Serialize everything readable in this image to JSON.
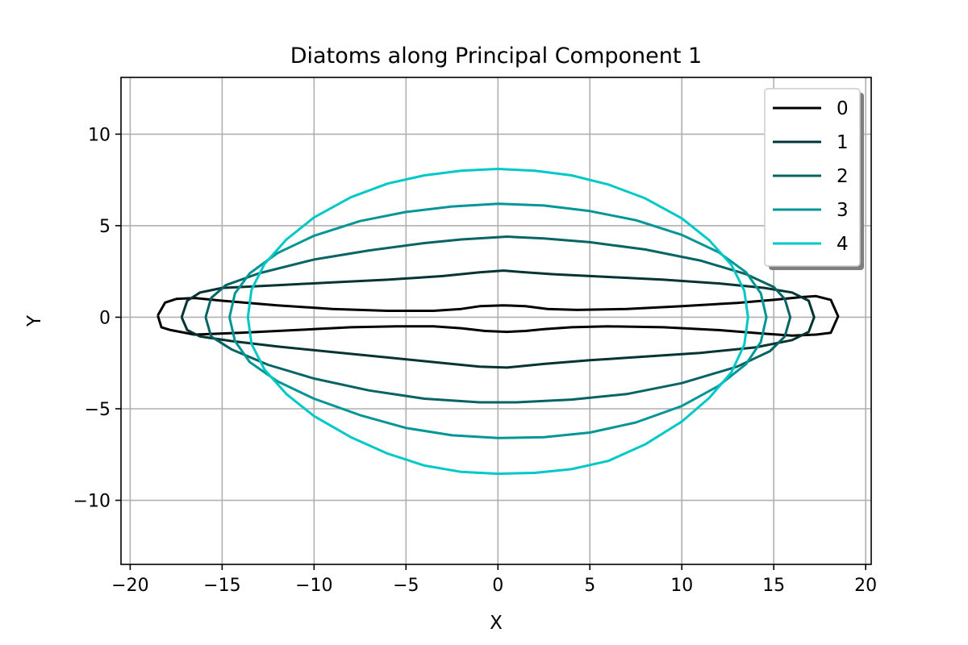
{
  "chart_data": {
    "type": "line",
    "title": "Diatoms along Principal Component 1",
    "xlabel": "X",
    "ylabel": "Y",
    "xlim": [
      -20.5,
      20.3
    ],
    "ylim": [
      -13.5,
      13.1
    ],
    "xticks": [
      -20,
      -15,
      -10,
      -5,
      0,
      5,
      10,
      15,
      20
    ],
    "yticks": [
      -10,
      -5,
      0,
      5,
      10
    ],
    "xtick_labels": [
      "−20",
      "−15",
      "−10",
      "−5",
      "0",
      "5",
      "10",
      "15",
      "20"
    ],
    "ytick_labels": [
      "−10",
      "−5",
      "0",
      "5",
      "10"
    ],
    "grid": true,
    "legend": "top-right",
    "series": [
      {
        "name": "0",
        "color": "#000000",
        "points": [
          [
            -18.5,
            0.1
          ],
          [
            -18.1,
            0.8
          ],
          [
            -17.5,
            1.0
          ],
          [
            -16.5,
            1.05
          ],
          [
            -15,
            0.9
          ],
          [
            -12,
            0.65
          ],
          [
            -9,
            0.45
          ],
          [
            -6,
            0.35
          ],
          [
            -3.5,
            0.35
          ],
          [
            -2,
            0.45
          ],
          [
            -1,
            0.6
          ],
          [
            0.3,
            0.65
          ],
          [
            1.5,
            0.6
          ],
          [
            2.7,
            0.45
          ],
          [
            4.3,
            0.4
          ],
          [
            7,
            0.45
          ],
          [
            10,
            0.6
          ],
          [
            13,
            0.78
          ],
          [
            15,
            0.95
          ],
          [
            16.5,
            1.1
          ],
          [
            17.3,
            1.15
          ],
          [
            18.1,
            0.95
          ],
          [
            18.5,
            0.05
          ],
          [
            18.1,
            -0.85
          ],
          [
            17.3,
            -0.95
          ],
          [
            16,
            -1.0
          ],
          [
            14.5,
            -0.9
          ],
          [
            12,
            -0.7
          ],
          [
            9,
            -0.55
          ],
          [
            6,
            -0.5
          ],
          [
            4,
            -0.55
          ],
          [
            2.5,
            -0.65
          ],
          [
            1.5,
            -0.75
          ],
          [
            0.5,
            -0.8
          ],
          [
            -0.7,
            -0.75
          ],
          [
            -2,
            -0.6
          ],
          [
            -3.5,
            -0.5
          ],
          [
            -5.5,
            -0.5
          ],
          [
            -8,
            -0.55
          ],
          [
            -11,
            -0.7
          ],
          [
            -14,
            -0.85
          ],
          [
            -16.5,
            -0.95
          ],
          [
            -17.8,
            -0.7
          ],
          [
            -18.3,
            -0.55
          ],
          [
            -18.5,
            0.1
          ]
        ]
      },
      {
        "name": "1",
        "color": "#033333",
        "points": [
          [
            -17.2,
            0.0
          ],
          [
            -16.9,
            0.9
          ],
          [
            -16.2,
            1.35
          ],
          [
            -15,
            1.6
          ],
          [
            -12,
            1.75
          ],
          [
            -9,
            1.9
          ],
          [
            -6,
            2.05
          ],
          [
            -3,
            2.25
          ],
          [
            -1,
            2.45
          ],
          [
            0.3,
            2.55
          ],
          [
            1.5,
            2.45
          ],
          [
            3,
            2.35
          ],
          [
            6,
            2.2
          ],
          [
            9,
            2.05
          ],
          [
            12,
            1.85
          ],
          [
            14.5,
            1.6
          ],
          [
            16,
            1.35
          ],
          [
            16.9,
            0.9
          ],
          [
            17.2,
            0.0
          ],
          [
            16.9,
            -0.8
          ],
          [
            16,
            -1.25
          ],
          [
            14,
            -1.65
          ],
          [
            11,
            -1.95
          ],
          [
            8,
            -2.15
          ],
          [
            5,
            -2.35
          ],
          [
            2.5,
            -2.55
          ],
          [
            0.5,
            -2.75
          ],
          [
            -1,
            -2.7
          ],
          [
            -3,
            -2.5
          ],
          [
            -6,
            -2.2
          ],
          [
            -9,
            -1.9
          ],
          [
            -12,
            -1.6
          ],
          [
            -14.5,
            -1.3
          ],
          [
            -16.2,
            -1.05
          ],
          [
            -16.9,
            -0.7
          ],
          [
            -17.2,
            0.0
          ]
        ]
      },
      {
        "name": "2",
        "color": "#066464",
        "points": [
          [
            -15.9,
            0.0
          ],
          [
            -15.6,
            1.05
          ],
          [
            -14.8,
            1.75
          ],
          [
            -13,
            2.4
          ],
          [
            -10,
            3.15
          ],
          [
            -7,
            3.65
          ],
          [
            -4,
            4.05
          ],
          [
            -2,
            4.25
          ],
          [
            0.5,
            4.4
          ],
          [
            2.5,
            4.3
          ],
          [
            5,
            4.1
          ],
          [
            8,
            3.7
          ],
          [
            11,
            3.1
          ],
          [
            13.5,
            2.35
          ],
          [
            15,
            1.65
          ],
          [
            15.6,
            1.0
          ],
          [
            15.9,
            0.0
          ],
          [
            15.6,
            -1.05
          ],
          [
            14.8,
            -1.85
          ],
          [
            13,
            -2.7
          ],
          [
            10,
            -3.6
          ],
          [
            7,
            -4.2
          ],
          [
            4,
            -4.5
          ],
          [
            1,
            -4.65
          ],
          [
            -1,
            -4.65
          ],
          [
            -4,
            -4.45
          ],
          [
            -7,
            -4.0
          ],
          [
            -10,
            -3.35
          ],
          [
            -12.5,
            -2.6
          ],
          [
            -14.5,
            -1.75
          ],
          [
            -15.6,
            -1.05
          ],
          [
            -15.9,
            0.0
          ]
        ]
      },
      {
        "name": "3",
        "color": "#049696",
        "points": [
          [
            -14.6,
            0.0
          ],
          [
            -14.3,
            1.3
          ],
          [
            -13.5,
            2.4
          ],
          [
            -12,
            3.5
          ],
          [
            -10,
            4.45
          ],
          [
            -7.5,
            5.25
          ],
          [
            -5,
            5.75
          ],
          [
            -2.5,
            6.05
          ],
          [
            0,
            6.2
          ],
          [
            2.5,
            6.1
          ],
          [
            5,
            5.8
          ],
          [
            7.5,
            5.3
          ],
          [
            10,
            4.5
          ],
          [
            12,
            3.55
          ],
          [
            13.5,
            2.45
          ],
          [
            14.3,
            1.3
          ],
          [
            14.6,
            0.0
          ],
          [
            14.3,
            -1.35
          ],
          [
            13.5,
            -2.55
          ],
          [
            12,
            -3.75
          ],
          [
            10,
            -4.85
          ],
          [
            7.5,
            -5.75
          ],
          [
            5,
            -6.3
          ],
          [
            2.5,
            -6.55
          ],
          [
            0,
            -6.6
          ],
          [
            -2.5,
            -6.45
          ],
          [
            -5,
            -6.05
          ],
          [
            -7.5,
            -5.35
          ],
          [
            -10,
            -4.45
          ],
          [
            -12,
            -3.5
          ],
          [
            -13.5,
            -2.45
          ],
          [
            -14.3,
            -1.3
          ],
          [
            -14.6,
            0.0
          ]
        ]
      },
      {
        "name": "4",
        "color": "#00c8c8",
        "points": [
          [
            -13.6,
            0.0
          ],
          [
            -13.4,
            1.5
          ],
          [
            -12.7,
            2.9
          ],
          [
            -11.5,
            4.25
          ],
          [
            -10,
            5.45
          ],
          [
            -8,
            6.55
          ],
          [
            -6,
            7.3
          ],
          [
            -4,
            7.75
          ],
          [
            -2,
            8.0
          ],
          [
            0,
            8.1
          ],
          [
            2,
            8.0
          ],
          [
            4,
            7.75
          ],
          [
            6,
            7.25
          ],
          [
            8,
            6.5
          ],
          [
            10,
            5.4
          ],
          [
            11.5,
            4.2
          ],
          [
            12.7,
            2.85
          ],
          [
            13.4,
            1.45
          ],
          [
            13.6,
            0.0
          ],
          [
            13.4,
            -1.5
          ],
          [
            12.7,
            -3.0
          ],
          [
            11.5,
            -4.4
          ],
          [
            10,
            -5.7
          ],
          [
            8,
            -6.95
          ],
          [
            6,
            -7.85
          ],
          [
            4,
            -8.3
          ],
          [
            2,
            -8.5
          ],
          [
            0,
            -8.55
          ],
          [
            -2,
            -8.45
          ],
          [
            -4,
            -8.1
          ],
          [
            -6,
            -7.45
          ],
          [
            -8,
            -6.55
          ],
          [
            -10,
            -5.4
          ],
          [
            -11.5,
            -4.2
          ],
          [
            -12.7,
            -2.85
          ],
          [
            -13.4,
            -1.45
          ],
          [
            -13.6,
            0.0
          ]
        ]
      }
    ]
  }
}
